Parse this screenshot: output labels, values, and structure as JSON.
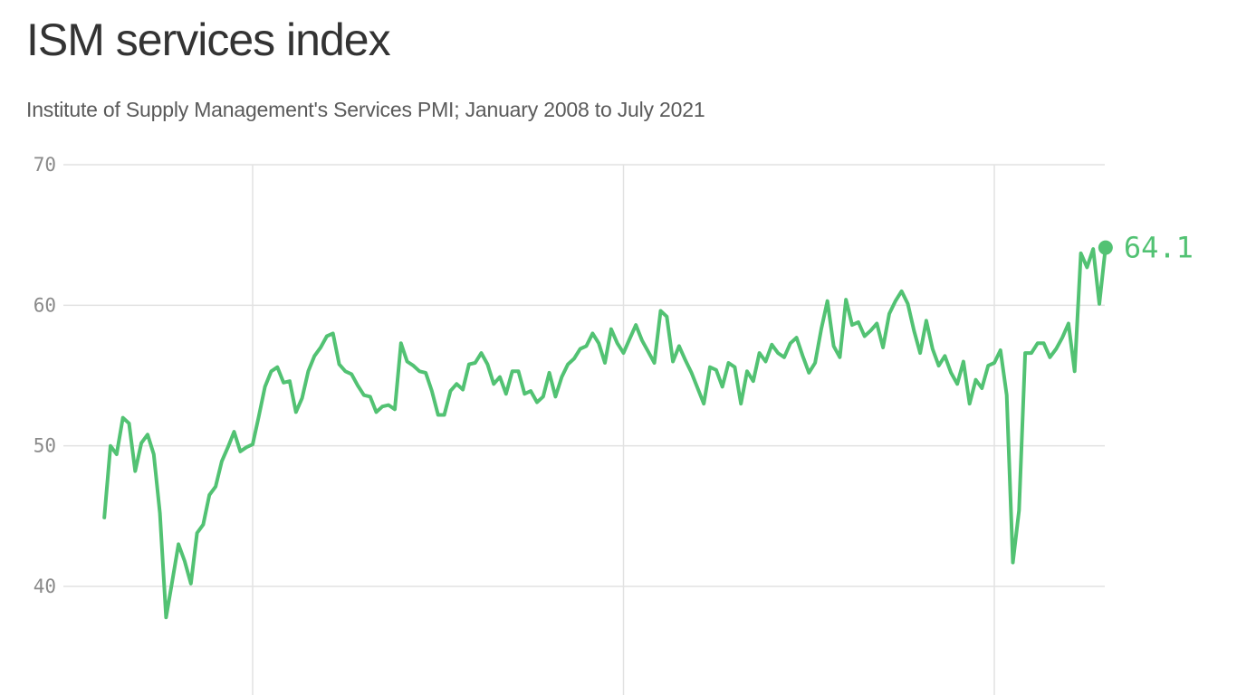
{
  "header": {
    "title": "ISM services index",
    "subtitle": "Institute of Supply Management's Services PMI; January 2008 to July 2021"
  },
  "colors": {
    "line": "#52c273",
    "grid": "#e2e2e2",
    "tick_text": "#8a8a8a",
    "title_text": "#333333",
    "subtitle_text": "#5a5a5a"
  },
  "end_annotation": {
    "label": "64.1",
    "date": "2021-07"
  },
  "chart_data": {
    "type": "line",
    "title": "ISM services index",
    "subtitle": "Institute of Supply Management's Services PMI; January 2008 to July 2021",
    "xlabel": "",
    "ylabel": "",
    "ylim": [
      34,
      70
    ],
    "yticks": [
      40,
      50,
      60,
      70
    ],
    "ytick_labels": [
      "40",
      "50",
      "60",
      "70"
    ],
    "x_gridlines": [
      "2010-01",
      "2015-01",
      "2020-01"
    ],
    "grid": true,
    "legend": null,
    "annotations": [
      {
        "x": "2021-07",
        "y": 64.1,
        "text": "64.1"
      }
    ],
    "x_start": "2008-01",
    "x_end": "2021-07",
    "frequency": "monthly",
    "series": [
      {
        "name": "ISM Services PMI",
        "values": [
          44.9,
          50.0,
          49.4,
          52.0,
          51.6,
          48.2,
          50.2,
          50.8,
          49.4,
          45.2,
          37.8,
          40.4,
          43.0,
          41.8,
          40.2,
          43.8,
          44.4,
          46.5,
          47.1,
          48.9,
          49.9,
          51.0,
          49.6,
          49.9,
          50.1,
          52.1,
          54.2,
          55.3,
          55.6,
          54.5,
          54.6,
          52.4,
          53.4,
          55.3,
          56.4,
          57.0,
          57.8,
          58.0,
          55.8,
          55.3,
          55.1,
          54.3,
          53.6,
          53.5,
          52.4,
          52.8,
          52.9,
          52.6,
          57.3,
          56.0,
          55.7,
          55.3,
          55.2,
          53.9,
          52.2,
          52.2,
          53.9,
          54.4,
          54.0,
          55.8,
          55.9,
          56.6,
          55.8,
          54.4,
          54.9,
          53.7,
          55.3,
          55.3,
          53.7,
          53.9,
          53.1,
          53.5,
          55.2,
          53.5,
          54.9,
          55.8,
          56.2,
          56.9,
          57.1,
          58.0,
          57.3,
          55.9,
          58.3,
          57.3,
          56.6,
          57.6,
          58.6,
          57.5,
          56.7,
          55.9,
          59.6,
          59.2,
          56.0,
          57.1,
          56.1,
          55.2,
          54.1,
          53.0,
          55.6,
          55.4,
          54.2,
          55.9,
          55.6,
          53.0,
          55.3,
          54.6,
          56.6,
          56.0,
          57.2,
          56.6,
          56.3,
          57.3,
          57.7,
          56.4,
          55.2,
          55.9,
          58.3,
          60.3,
          57.1,
          56.3,
          60.4,
          58.6,
          58.8,
          57.8,
          58.2,
          58.7,
          57.0,
          59.4,
          60.3,
          61.0,
          60.1,
          58.2,
          56.6,
          58.9,
          56.9,
          55.7,
          56.4,
          55.2,
          54.4,
          56.0,
          53.0,
          54.7,
          54.1,
          55.7,
          55.9,
          56.8,
          53.6,
          41.7,
          45.4,
          56.6,
          56.6,
          57.3,
          57.3,
          56.3,
          56.9,
          57.7,
          58.7,
          55.3,
          63.7,
          62.7,
          64.0,
          60.1,
          64.1
        ]
      }
    ]
  }
}
